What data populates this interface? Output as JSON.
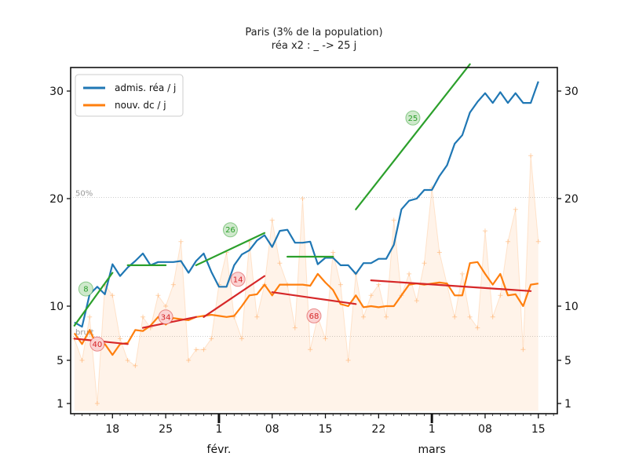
{
  "chart_data": {
    "type": "line",
    "title": "Paris (3% de la population)",
    "subtitle": "réa x2 : _ -> 25 j",
    "y_axis": {
      "scale": "custom",
      "ticks": [
        1,
        5,
        10,
        20,
        30
      ],
      "tick_labels": [
        "1",
        "5",
        "10",
        "20",
        "30"
      ],
      "range": [
        0.3,
        33
      ]
    },
    "x_axis": {
      "tick_labels": [
        "18",
        "25",
        "1",
        "08",
        "15",
        "22",
        "1",
        "08",
        "15"
      ],
      "tick_days": [
        5,
        12,
        19,
        26,
        33,
        40,
        47,
        54,
        61
      ],
      "month_labels": [
        {
          "label": "févr.",
          "day": 19
        },
        {
          "label": "mars",
          "day": 47
        }
      ],
      "range": [
        -0.5,
        63.5
      ]
    },
    "legend": {
      "position": "top-left",
      "entries": [
        {
          "label": "admis. réa / j",
          "color": "#1f77b4"
        },
        {
          "label": "nouv. dc / j",
          "color": "#ff7f0e"
        }
      ]
    },
    "reference_lines": [
      {
        "label": "50%",
        "y": 20.1
      },
      {
        "label": "bruit",
        "y": 7.2
      }
    ],
    "series": [
      {
        "name": "admis. réa / j",
        "color": "#1f77b4",
        "x": [
          0,
          1,
          2,
          3,
          4,
          5,
          6,
          7,
          8,
          9,
          10,
          11,
          12,
          13,
          14,
          15,
          16,
          17,
          18,
          19,
          20,
          21,
          22,
          23,
          24,
          25,
          26,
          27,
          28,
          29,
          30,
          31,
          32,
          33,
          34,
          35,
          36,
          37,
          38,
          39,
          40,
          41,
          42,
          43,
          44,
          45,
          46,
          47,
          48,
          49,
          50,
          51,
          52,
          53,
          54,
          55,
          56,
          57,
          58,
          59,
          60,
          61
        ],
        "y": [
          8.5,
          8.1,
          11.1,
          11.8,
          11.1,
          13.9,
          12.8,
          13.6,
          14.2,
          14.9,
          13.8,
          14.1,
          14.1,
          14.1,
          14.2,
          13.1,
          14.2,
          14.9,
          13.2,
          11.8,
          11.8,
          13.8,
          14.8,
          15.2,
          16.1,
          16.6,
          15.5,
          17.0,
          17.1,
          15.9,
          15.9,
          16.0,
          13.9,
          14.5,
          14.5,
          13.8,
          13.8,
          13.0,
          14.0,
          14.0,
          14.4,
          14.4,
          15.7,
          19.0,
          19.8,
          20.0,
          20.8,
          20.8,
          22.1,
          23.1,
          25.1,
          25.9,
          28.0,
          29.0,
          29.8,
          28.9,
          29.9,
          28.9,
          29.8,
          28.9,
          28.9,
          30.9
        ]
      },
      {
        "name": "nouv. dc / j",
        "color": "#ff7f0e",
        "x": [
          0,
          1,
          2,
          3,
          4,
          5,
          6,
          7,
          8,
          9,
          10,
          11,
          12,
          13,
          14,
          15,
          16,
          17,
          18,
          19,
          20,
          21,
          22,
          23,
          24,
          25,
          26,
          27,
          28,
          29,
          30,
          31,
          32,
          33,
          34,
          35,
          36,
          37,
          38,
          39,
          40,
          41,
          42,
          43,
          44,
          45,
          46,
          47,
          48,
          49,
          50,
          51,
          52,
          53,
          54,
          55,
          56,
          57,
          58,
          59,
          60,
          61
        ],
        "y": [
          7.5,
          6.5,
          7.8,
          6.3,
          6.5,
          5.5,
          6.5,
          6.6,
          7.8,
          7.7,
          8.2,
          9.0,
          8.3,
          8.9,
          8.8,
          8.7,
          9.0,
          9.1,
          9.2,
          9.1,
          9.0,
          9.1,
          10.0,
          11.0,
          11.1,
          12.0,
          11.0,
          12.0,
          12.0,
          12.0,
          12.0,
          11.9,
          13.0,
          12.2,
          11.5,
          10.2,
          10.0,
          11.0,
          9.9,
          10.0,
          9.9,
          10.0,
          10.0,
          11.0,
          12.0,
          12.1,
          12.0,
          12.1,
          12.2,
          12.1,
          11.0,
          11.0,
          14.0,
          14.1,
          13.0,
          12.0,
          13.0,
          11.0,
          11.1,
          10.0,
          12.0,
          12.1
        ]
      },
      {
        "name": "",
        "color": "#ff7f0e",
        "x": [
          0,
          1,
          2,
          3,
          4,
          5,
          6,
          7,
          8,
          9,
          10,
          11,
          12,
          13,
          14,
          15,
          16,
          17,
          18,
          19,
          20,
          21,
          22,
          23,
          24,
          25,
          26,
          27,
          28,
          29,
          30,
          31,
          32,
          33,
          34,
          35,
          36,
          37,
          38,
          39,
          40,
          41,
          42,
          43,
          44,
          45,
          46,
          47,
          48,
          49,
          50,
          51,
          52,
          53,
          54,
          55,
          56,
          57,
          58,
          59,
          60,
          61
        ],
        "y": [
          7.0,
          5.0,
          9.0,
          1.0,
          12.0,
          11.0,
          7.0,
          5.0,
          4.5,
          9.0,
          8.0,
          11.0,
          10.0,
          12.0,
          16.0,
          5.0,
          6.0,
          6.0,
          7.0,
          12.0,
          15.0,
          9.0,
          7.0,
          16.0,
          9.0,
          12.0,
          18.0,
          14.0,
          12.0,
          8.0,
          20.0,
          6.0,
          9.0,
          7.0,
          15.0,
          12.0,
          5.0,
          13.0,
          9.0,
          11.0,
          12.0,
          9.0,
          18.0,
          11.0,
          13.0,
          10.5,
          14.0,
          21.0,
          15.0,
          12.0,
          9.0,
          13.0,
          9.0,
          8.0,
          17.0,
          9.0,
          11.0,
          16.0,
          19.0,
          6.0,
          24.0,
          16.0
        ]
      }
    ],
    "trend_lines": [
      {
        "color": "#2ca02c",
        "x": [
          0,
          5
        ],
        "y": [
          8.2,
          13.1
        ]
      },
      {
        "color": "#2ca02c",
        "x": [
          7,
          12
        ],
        "y": [
          13.8,
          13.8
        ]
      },
      {
        "color": "#2ca02c",
        "x": [
          16,
          25
        ],
        "y": [
          13.8,
          16.8
        ]
      },
      {
        "color": "#2ca02c",
        "x": [
          28,
          34
        ],
        "y": [
          14.6,
          14.6
        ]
      },
      {
        "color": "#2ca02c",
        "x": [
          37,
          52
        ],
        "y": [
          19.0,
          32.5
        ]
      },
      {
        "color": "#d62728",
        "x": [
          0,
          7
        ],
        "y": [
          7.0,
          6.5
        ]
      },
      {
        "color": "#d62728",
        "x": [
          9,
          16
        ],
        "y": [
          8.0,
          9.0
        ]
      },
      {
        "color": "#d62728",
        "x": [
          17,
          25
        ],
        "y": [
          9.0,
          12.8
        ]
      },
      {
        "color": "#d62728",
        "x": [
          26,
          37
        ],
        "y": [
          11.3,
          10.2
        ]
      },
      {
        "color": "#d62728",
        "x": [
          39,
          60
        ],
        "y": [
          12.4,
          11.4
        ]
      }
    ],
    "annotations": [
      {
        "text": "8",
        "x": 1.5,
        "y": 11.6,
        "color": "#2ca02c"
      },
      {
        "text": "26",
        "x": 20.5,
        "y": 17.1,
        "color": "#2ca02c"
      },
      {
        "text": "25",
        "x": 44.5,
        "y": 27.5,
        "color": "#2ca02c"
      },
      {
        "text": "40",
        "x": 3.0,
        "y": 6.5,
        "color": "#d62728"
      },
      {
        "text": "34",
        "x": 12.0,
        "y": 9.0,
        "color": "#d62728"
      },
      {
        "text": "14",
        "x": 21.5,
        "y": 12.5,
        "color": "#d62728"
      },
      {
        "text": "68",
        "x": 31.5,
        "y": 9.1,
        "color": "#d62728"
      }
    ]
  }
}
